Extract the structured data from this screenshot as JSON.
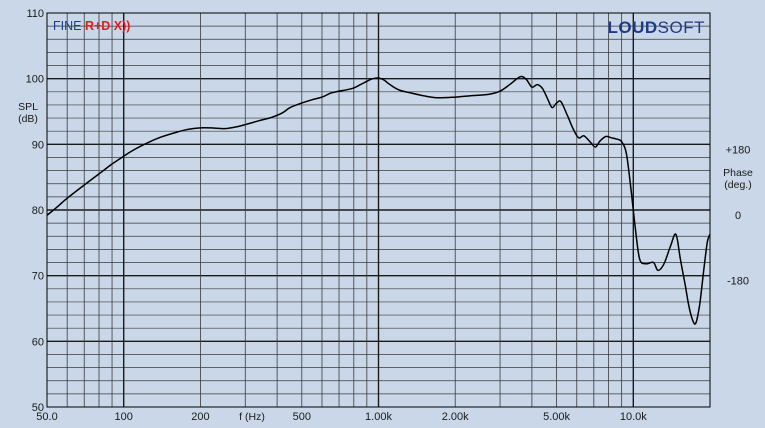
{
  "chart_data": {
    "type": "line",
    "xscale": "log",
    "xlim": [
      50,
      20000
    ],
    "ylim": [
      50,
      110
    ],
    "xlabel": "f (Hz)",
    "ylabel_line1": "SPL",
    "ylabel_line2": "(dB)",
    "right_label_line1": "Phase",
    "right_label_line2": "(deg.)",
    "x_tick_labels": [
      {
        "value": 50,
        "label": "50.0"
      },
      {
        "value": 100,
        "label": "100"
      },
      {
        "value": 200,
        "label": "200"
      },
      {
        "value": 500,
        "label": "500"
      },
      {
        "value": 1000,
        "label": "1.00k"
      },
      {
        "value": 2000,
        "label": "2.00k"
      },
      {
        "value": 5000,
        "label": "5.00k"
      },
      {
        "value": 10000,
        "label": "10.0k"
      }
    ],
    "y_tick_labels": [
      {
        "value": 110,
        "label": "110"
      },
      {
        "value": 100,
        "label": "100"
      },
      {
        "value": 90,
        "label": "90"
      },
      {
        "value": 80,
        "label": "80"
      },
      {
        "value": 70,
        "label": "70"
      },
      {
        "value": 60,
        "label": "60"
      },
      {
        "value": 50,
        "label": "50"
      }
    ],
    "right_tick_labels": [
      {
        "value": 90,
        "label": "+180"
      },
      {
        "value": 80,
        "label": "0"
      },
      {
        "value": 70,
        "label": "-180"
      }
    ],
    "grid": true,
    "series": [
      {
        "color": "#000000",
        "points": [
          [
            50,
            79.2
          ],
          [
            55,
            80.5
          ],
          [
            60,
            81.8
          ],
          [
            70,
            83.8
          ],
          [
            80,
            85.5
          ],
          [
            90,
            87.0
          ],
          [
            100,
            88.2
          ],
          [
            110,
            89.2
          ],
          [
            125,
            90.3
          ],
          [
            140,
            91.1
          ],
          [
            160,
            91.8
          ],
          [
            180,
            92.3
          ],
          [
            200,
            92.5
          ],
          [
            220,
            92.5
          ],
          [
            250,
            92.4
          ],
          [
            280,
            92.7
          ],
          [
            300,
            93.0
          ],
          [
            340,
            93.6
          ],
          [
            380,
            94.1
          ],
          [
            420,
            94.8
          ],
          [
            450,
            95.6
          ],
          [
            500,
            96.3
          ],
          [
            550,
            96.8
          ],
          [
            600,
            97.2
          ],
          [
            650,
            97.8
          ],
          [
            700,
            98.1
          ],
          [
            750,
            98.3
          ],
          [
            800,
            98.6
          ],
          [
            850,
            99.1
          ],
          [
            900,
            99.6
          ],
          [
            950,
            100.0
          ],
          [
            1000,
            100.1
          ],
          [
            1050,
            99.8
          ],
          [
            1100,
            99.2
          ],
          [
            1200,
            98.3
          ],
          [
            1350,
            97.8
          ],
          [
            1500,
            97.4
          ],
          [
            1700,
            97.1
          ],
          [
            2000,
            97.2
          ],
          [
            2300,
            97.4
          ],
          [
            2700,
            97.6
          ],
          [
            3000,
            98.1
          ],
          [
            3300,
            99.2
          ],
          [
            3600,
            100.3
          ],
          [
            3800,
            99.9
          ],
          [
            4000,
            98.7
          ],
          [
            4200,
            99.1
          ],
          [
            4400,
            98.5
          ],
          [
            4600,
            97.0
          ],
          [
            4800,
            95.6
          ],
          [
            5000,
            96.3
          ],
          [
            5200,
            96.5
          ],
          [
            5500,
            94.5
          ],
          [
            5800,
            92.4
          ],
          [
            6100,
            91.0
          ],
          [
            6400,
            91.3
          ],
          [
            6800,
            90.3
          ],
          [
            7100,
            89.6
          ],
          [
            7400,
            90.5
          ],
          [
            7800,
            91.2
          ],
          [
            8200,
            91.0
          ],
          [
            8600,
            90.8
          ],
          [
            9000,
            90.4
          ],
          [
            9400,
            88.5
          ],
          [
            9800,
            83.0
          ],
          [
            10200,
            77.0
          ],
          [
            10600,
            72.5
          ],
          [
            11200,
            71.8
          ],
          [
            12000,
            72.0
          ],
          [
            12500,
            70.8
          ],
          [
            13200,
            71.8
          ],
          [
            14000,
            74.5
          ],
          [
            14700,
            76.3
          ],
          [
            15300,
            72.5
          ],
          [
            16000,
            68.5
          ],
          [
            16500,
            65.5
          ],
          [
            17100,
            63.2
          ],
          [
            17600,
            62.8
          ],
          [
            18200,
            65.5
          ],
          [
            18900,
            70.8
          ],
          [
            19500,
            75.0
          ],
          [
            20000,
            76.3
          ]
        ]
      }
    ]
  },
  "branding": {
    "fine_text": "FINE ",
    "rd_text": "R+D X))",
    "loud_text": "LOUD",
    "soft_text": "SOFT"
  }
}
